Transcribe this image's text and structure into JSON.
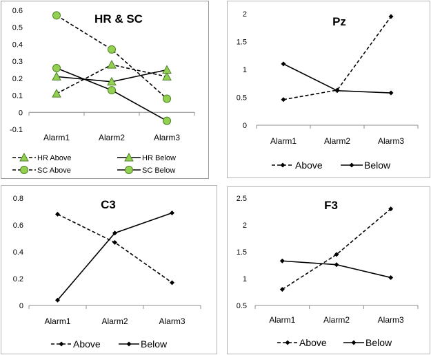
{
  "chart_data": [
    {
      "type": "line",
      "title": "HR & SC",
      "categories": [
        "Alarm1",
        "Alarm2",
        "Alarm3"
      ],
      "ylim": [
        -0.1,
        0.6
      ],
      "yticks": [
        "0.6",
        "0.5",
        "0.4",
        "0.3",
        "0.2",
        "0.1",
        "0",
        "-0.1"
      ],
      "ytick_values": [
        0.6,
        0.5,
        0.4,
        0.3,
        0.2,
        0.1,
        0,
        -0.1
      ],
      "legend_position": "bottom",
      "series": [
        {
          "name": "HR Above",
          "values": [
            0.11,
            0.28,
            0.21
          ],
          "style": "dashed",
          "marker": "triangle",
          "marker_color": "#92d050"
        },
        {
          "name": "HR Below",
          "values": [
            0.21,
            0.18,
            0.25
          ],
          "style": "solid",
          "marker": "triangle",
          "marker_color": "#92d050"
        },
        {
          "name": "SC Above",
          "values": [
            0.57,
            0.37,
            0.08
          ],
          "style": "dashed",
          "marker": "circle",
          "marker_color": "#92d050"
        },
        {
          "name": "SC Below",
          "values": [
            0.26,
            0.13,
            -0.05
          ],
          "style": "solid",
          "marker": "circle",
          "marker_color": "#92d050"
        }
      ]
    },
    {
      "type": "line",
      "title": "Pz",
      "categories": [
        "Alarm1",
        "Alarm2",
        "Alarm3"
      ],
      "ylim": [
        0,
        2
      ],
      "yticks": [
        "2",
        "1.5",
        "1",
        "0.5",
        "0"
      ],
      "ytick_values": [
        2,
        1.5,
        1,
        0.5,
        0
      ],
      "legend_position": "bottom",
      "series": [
        {
          "name": "Above",
          "values": [
            0.46,
            0.63,
            1.95
          ],
          "style": "dashed",
          "marker": "diamond",
          "marker_color": "#000000"
        },
        {
          "name": "Below",
          "values": [
            1.1,
            0.62,
            0.58
          ],
          "style": "solid",
          "marker": "diamond",
          "marker_color": "#000000"
        }
      ]
    },
    {
      "type": "line",
      "title": "C3",
      "categories": [
        "Alarm1",
        "Alarm2",
        "Alarm3"
      ],
      "ylim": [
        0,
        0.8
      ],
      "yticks": [
        "0.8",
        "0.6",
        "0.4",
        "0.2",
        "0"
      ],
      "ytick_values": [
        0.8,
        0.6,
        0.4,
        0.2,
        0
      ],
      "legend_position": "bottom",
      "series": [
        {
          "name": "Above",
          "values": [
            0.68,
            0.47,
            0.17
          ],
          "style": "dashed",
          "marker": "diamond",
          "marker_color": "#000000"
        },
        {
          "name": "Below",
          "values": [
            0.04,
            0.54,
            0.69
          ],
          "style": "solid",
          "marker": "diamond",
          "marker_color": "#000000"
        }
      ]
    },
    {
      "type": "line",
      "title": "F3",
      "categories": [
        "Alarm1",
        "Alarm2",
        "Alarm3"
      ],
      "ylim": [
        0.5,
        2.5
      ],
      "yticks": [
        "2.5",
        "2",
        "1.5",
        "1",
        "0.5"
      ],
      "ytick_values": [
        2.5,
        2,
        1.5,
        1,
        0.5
      ],
      "legend_position": "bottom",
      "series": [
        {
          "name": "Above",
          "values": [
            0.8,
            1.45,
            2.3
          ],
          "style": "dashed",
          "marker": "diamond",
          "marker_color": "#000000"
        },
        {
          "name": "Below",
          "values": [
            1.33,
            1.26,
            1.02
          ],
          "style": "solid",
          "marker": "diamond",
          "marker_color": "#000000"
        }
      ]
    }
  ]
}
